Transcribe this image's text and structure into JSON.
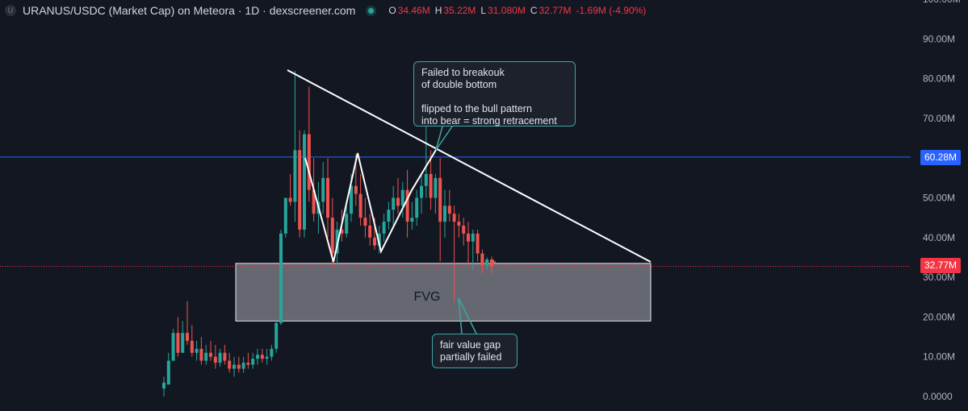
{
  "header": {
    "title": "URANUS/USDC (Market Cap) on Meteora · 1D · dexscreener.com",
    "logo_glyph": "U",
    "ohlc": [
      {
        "key": "O",
        "value": "34.46M"
      },
      {
        "key": "H",
        "value": "35.22M"
      },
      {
        "key": "L",
        "value": "31.080M"
      },
      {
        "key": "C",
        "value": "32.77M"
      },
      {
        "key": "",
        "value": "-1.69M (-4.90%)"
      }
    ]
  },
  "annotations": {
    "top_note": "Failed to breakouk\nof double bottom\n\nflipped to the bull pattern\ninto bear = strong retracement",
    "bottom_note": "fair value gap\npartially failed",
    "fvg_label": "FVG"
  },
  "badges": {
    "hline_label": "60.28M",
    "last_label": "32.77M"
  },
  "colors": {
    "background": "#131722",
    "up": "#26a69a",
    "down": "#ef5350",
    "hline": "#2962ff",
    "last_price_line": "#f23645",
    "callout_border": "#3aa7a3",
    "drawing": "#ffffff"
  },
  "chart_data": {
    "type": "candlestick",
    "title": "URANUS/USDC (Market Cap) on Meteora · 1D · dexscreener.com",
    "unit": "M",
    "yaxis": {
      "ticks": [
        "0.0000",
        "10.00M",
        "20.00M",
        "30.00M",
        "40.00M",
        "50.00M",
        "60.00M",
        "70.00M",
        "80.00M",
        "90.00M",
        "100.00M"
      ],
      "values": [
        0,
        10,
        20,
        30,
        40,
        50,
        60,
        70,
        80,
        90,
        100
      ],
      "range": [
        0,
        100
      ]
    },
    "grid": false,
    "hline": 60.28,
    "last_price": 32.77,
    "fvg_zone": {
      "low": 19,
      "high": 33.5
    },
    "candles": [
      [
        0,
        2,
        5,
        0,
        3.5
      ],
      [
        1,
        3,
        11,
        3,
        9
      ],
      [
        2,
        9,
        17,
        9,
        16
      ],
      [
        3,
        16,
        20,
        10,
        11
      ],
      [
        4,
        11,
        19,
        11,
        16
      ],
      [
        5,
        16,
        24,
        13,
        14
      ],
      [
        6,
        14,
        18,
        10,
        11
      ],
      [
        7,
        11,
        14,
        9,
        12
      ],
      [
        8,
        12,
        15,
        8,
        9
      ],
      [
        9,
        9,
        13,
        8,
        11
      ],
      [
        10,
        11,
        14,
        9,
        10
      ],
      [
        11,
        10,
        13,
        7,
        8.5
      ],
      [
        12,
        8.5,
        12,
        7.5,
        11
      ],
      [
        13,
        11,
        13,
        8,
        9
      ],
      [
        14,
        9,
        11,
        6,
        7
      ],
      [
        15,
        7,
        10,
        5,
        8
      ],
      [
        16,
        8,
        10,
        6,
        7
      ],
      [
        17,
        7,
        10,
        6,
        8.5
      ],
      [
        18,
        8.5,
        11,
        7,
        8
      ],
      [
        19,
        8,
        11,
        7,
        9.5
      ],
      [
        20,
        9.5,
        12,
        8,
        10.5
      ],
      [
        21,
        10.5,
        12,
        8.5,
        9.5
      ],
      [
        22,
        9.5,
        12,
        8,
        10
      ],
      [
        23,
        10,
        13,
        9,
        12
      ],
      [
        24,
        12,
        19,
        11,
        18.5
      ],
      [
        25,
        18.5,
        42,
        18,
        41
      ],
      [
        26,
        41,
        50,
        40,
        50
      ],
      [
        27,
        50,
        56,
        48,
        49
      ],
      [
        28,
        49,
        82,
        44,
        62
      ],
      [
        29,
        62,
        67,
        40,
        42
      ],
      [
        30,
        42,
        67,
        40,
        66
      ],
      [
        31,
        66,
        78,
        49,
        52
      ],
      [
        32,
        52,
        60,
        44,
        46
      ],
      [
        33,
        46,
        54,
        41,
        49
      ],
      [
        34,
        49,
        59,
        46,
        55
      ],
      [
        35,
        55,
        60,
        40,
        45
      ],
      [
        36,
        45,
        50,
        33,
        36
      ],
      [
        37,
        36,
        44,
        33,
        42
      ],
      [
        38,
        42,
        47,
        39,
        41
      ],
      [
        39,
        41,
        48,
        40,
        46
      ],
      [
        40,
        46,
        56,
        44,
        53
      ],
      [
        41,
        53,
        61,
        48,
        51
      ],
      [
        42,
        51,
        56,
        43,
        45
      ],
      [
        43,
        45,
        50,
        40,
        43
      ],
      [
        44,
        43,
        46,
        38,
        40
      ],
      [
        45,
        40,
        45,
        37,
        38
      ],
      [
        46,
        38,
        43,
        36,
        41
      ],
      [
        47,
        41,
        46,
        39,
        44
      ],
      [
        48,
        44,
        49,
        42,
        47
      ],
      [
        49,
        47,
        53,
        43,
        50
      ],
      [
        50,
        50,
        55,
        46,
        48
      ],
      [
        51,
        48,
        54,
        45,
        52
      ],
      [
        52,
        52,
        57,
        40,
        44
      ],
      [
        53,
        44,
        49,
        42,
        45
      ],
      [
        54,
        45,
        52,
        43,
        50
      ],
      [
        55,
        50,
        56,
        46,
        53
      ],
      [
        56,
        53,
        72,
        50,
        56
      ],
      [
        57,
        56,
        62,
        47,
        50
      ],
      [
        58,
        50,
        56,
        46,
        55
      ],
      [
        59,
        55,
        60,
        34,
        44
      ],
      [
        60,
        44,
        52,
        40,
        48
      ],
      [
        61,
        48,
        52,
        44,
        46
      ],
      [
        62,
        46,
        48,
        24,
        44
      ],
      [
        63,
        44,
        46,
        40,
        43
      ],
      [
        64,
        43,
        45,
        38,
        41
      ],
      [
        65,
        41,
        44,
        33,
        39
      ],
      [
        66,
        39,
        42,
        32,
        41
      ],
      [
        67,
        41,
        42,
        34,
        36
      ],
      [
        68,
        36,
        37,
        31,
        33
      ],
      [
        69,
        33,
        35,
        32,
        34.5
      ],
      [
        70,
        34.46,
        35.22,
        31.08,
        32.77
      ]
    ],
    "candle_fields": [
      "index",
      "open",
      "high",
      "low",
      "close"
    ]
  }
}
